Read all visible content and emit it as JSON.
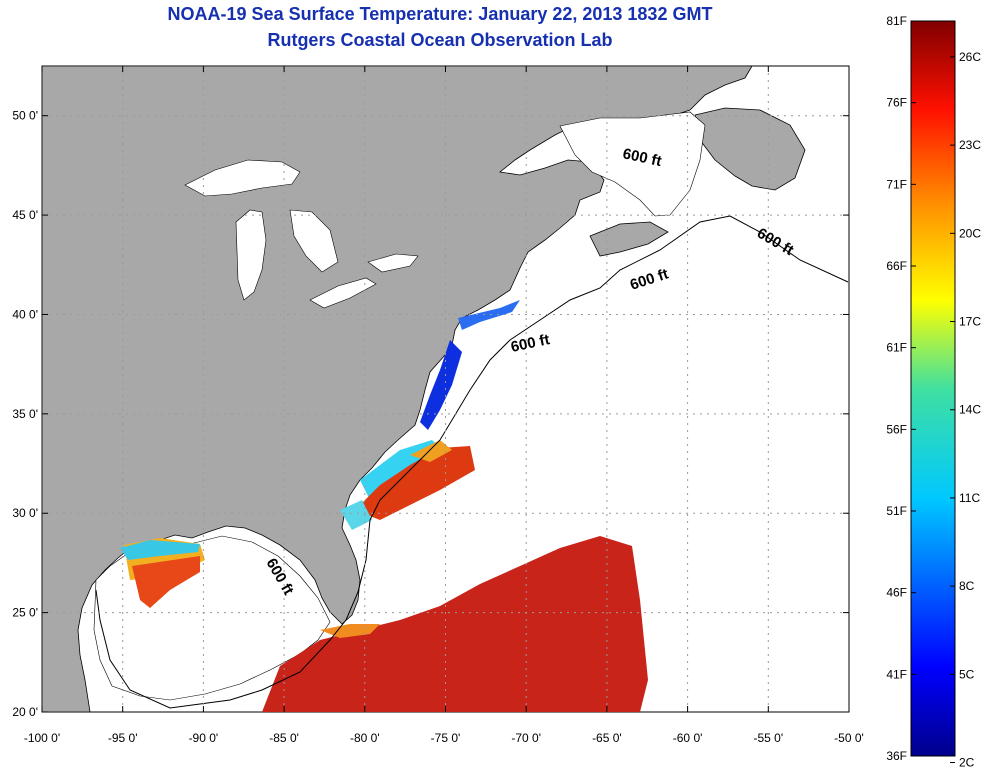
{
  "title": {
    "line1": "NOAA-19 Sea Surface Temperature:  January 22, 2013 1832 GMT",
    "line2": "Rutgers Coastal Ocean Observation Lab"
  },
  "map": {
    "lon_range": [
      -100,
      -50
    ],
    "lat_range": [
      20,
      52.5
    ],
    "grid": "dotted",
    "x_ticks": [
      "-100 0'",
      "-95 0'",
      "-90 0'",
      "-85 0'",
      "-80 0'",
      "-75 0'",
      "-70 0'",
      "-65 0'",
      "-60 0'",
      "-55 0'",
      "-50 0'"
    ],
    "y_ticks": [
      "20 0'",
      "25 0'",
      "30 0'",
      "35 0'",
      "40 0'",
      "45 0'",
      "50 0'"
    ],
    "isobath_label": "600 ft",
    "colors": {
      "land": "#a8a8a8",
      "ocean": "#ffffff",
      "grid": "#9a9a9a"
    }
  },
  "colorbar": {
    "fahrenheit": [
      "81F",
      "76F",
      "71F",
      "66F",
      "61F",
      "56F",
      "51F",
      "46F",
      "41F",
      "36F"
    ],
    "celsius": [
      "26C",
      "23C",
      "20C",
      "17C",
      "14C",
      "11C",
      "8C",
      "5C",
      "2C"
    ]
  }
}
